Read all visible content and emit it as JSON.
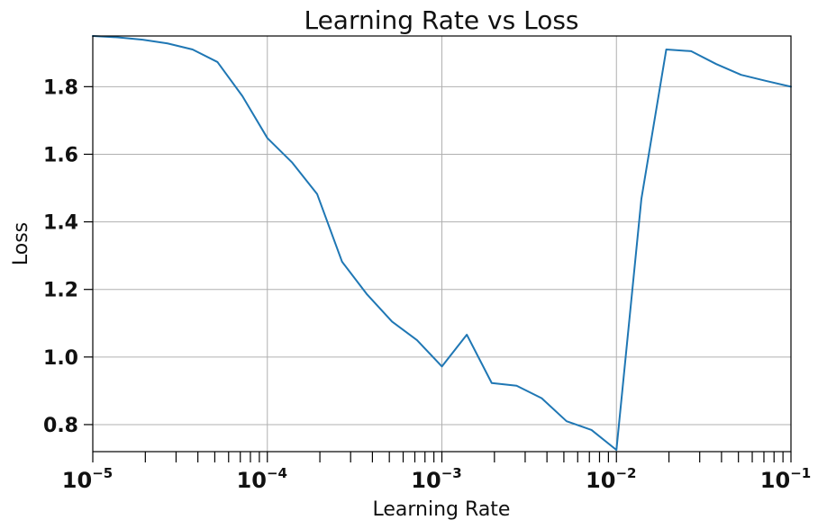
{
  "chart_data": {
    "type": "line",
    "title": "Learning Rate vs Loss",
    "xlabel": "Learning Rate",
    "ylabel": "Loss",
    "xscale": "log",
    "xlim": [
      1e-05,
      0.1
    ],
    "ylim": [
      0.72,
      1.95
    ],
    "grid": true,
    "x_ticks": [
      {
        "label": "10",
        "exponent": "−5",
        "value": 1e-05
      },
      {
        "label": "10",
        "exponent": "−4",
        "value": 0.0001
      },
      {
        "label": "10",
        "exponent": "−3",
        "value": 0.001
      },
      {
        "label": "10",
        "exponent": "−2",
        "value": 0.01
      },
      {
        "label": "10",
        "exponent": "−1",
        "value": 0.1
      }
    ],
    "y_ticks": [
      {
        "label": "0.8",
        "value": 0.8
      },
      {
        "label": "1.0",
        "value": 1.0
      },
      {
        "label": "1.2",
        "value": 1.2
      },
      {
        "label": "1.4",
        "value": 1.4
      },
      {
        "label": "1.6",
        "value": 1.6
      },
      {
        "label": "1.8",
        "value": 1.8
      }
    ],
    "series": [
      {
        "color": "#1f77b4",
        "points": [
          {
            "x": 1e-05,
            "y": 1.95
          },
          {
            "x": 1.39e-05,
            "y": 1.946
          },
          {
            "x": 1.93e-05,
            "y": 1.939
          },
          {
            "x": 2.68e-05,
            "y": 1.928
          },
          {
            "x": 3.73e-05,
            "y": 1.91
          },
          {
            "x": 5.18e-05,
            "y": 1.873
          },
          {
            "x": 7.2e-05,
            "y": 1.772
          },
          {
            "x": 0.0001,
            "y": 1.648
          },
          {
            "x": 0.000139,
            "y": 1.575
          },
          {
            "x": 0.000193,
            "y": 1.482
          },
          {
            "x": 0.000268,
            "y": 1.282
          },
          {
            "x": 0.000373,
            "y": 1.185
          },
          {
            "x": 0.000518,
            "y": 1.105
          },
          {
            "x": 0.00072,
            "y": 1.05
          },
          {
            "x": 0.001,
            "y": 0.972
          },
          {
            "x": 0.00139,
            "y": 1.066
          },
          {
            "x": 0.00193,
            "y": 0.923
          },
          {
            "x": 0.00268,
            "y": 0.915
          },
          {
            "x": 0.00373,
            "y": 0.878
          },
          {
            "x": 0.00518,
            "y": 0.81
          },
          {
            "x": 0.0072,
            "y": 0.784
          },
          {
            "x": 0.01,
            "y": 0.725
          },
          {
            "x": 0.0139,
            "y": 1.468
          },
          {
            "x": 0.0193,
            "y": 1.91
          },
          {
            "x": 0.0268,
            "y": 1.905
          },
          {
            "x": 0.0373,
            "y": 1.867
          },
          {
            "x": 0.0518,
            "y": 1.835
          },
          {
            "x": 0.072,
            "y": 1.817
          },
          {
            "x": 0.1,
            "y": 1.8
          }
        ]
      }
    ]
  }
}
